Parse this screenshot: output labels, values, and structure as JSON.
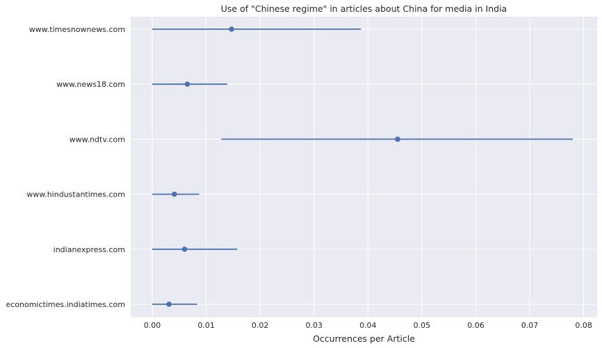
{
  "chart_data": {
    "type": "scatter",
    "title": "Use of \"Chinese regime\" in articles about China for media in India",
    "xlabel": "Occurrences per Article",
    "ylabel": "",
    "xlim": [
      -0.004,
      0.0825
    ],
    "xticks": [
      0.0,
      0.01,
      0.02,
      0.03,
      0.04,
      0.05,
      0.06,
      0.07,
      0.08
    ],
    "xtick_labels": [
      "0.00",
      "0.01",
      "0.02",
      "0.03",
      "0.04",
      "0.05",
      "0.06",
      "0.07",
      "0.08"
    ],
    "grid": true,
    "categories": [
      "www.timesnownews.com",
      "www.news18.com",
      "www.ndtv.com",
      "www.hindustantimes.com",
      "indianexpress.com",
      "economictimes.indiatimes.com"
    ],
    "values": [
      0.0147,
      0.0065,
      0.0455,
      0.0041,
      0.006,
      0.0031
    ],
    "ci_low": [
      0.0,
      0.0,
      0.0128,
      0.0,
      0.0,
      0.0
    ],
    "ci_high": [
      0.0387,
      0.0139,
      0.078,
      0.0087,
      0.0158,
      0.0083
    ],
    "color": "#4c72b0",
    "background": "#eaeaf2"
  }
}
